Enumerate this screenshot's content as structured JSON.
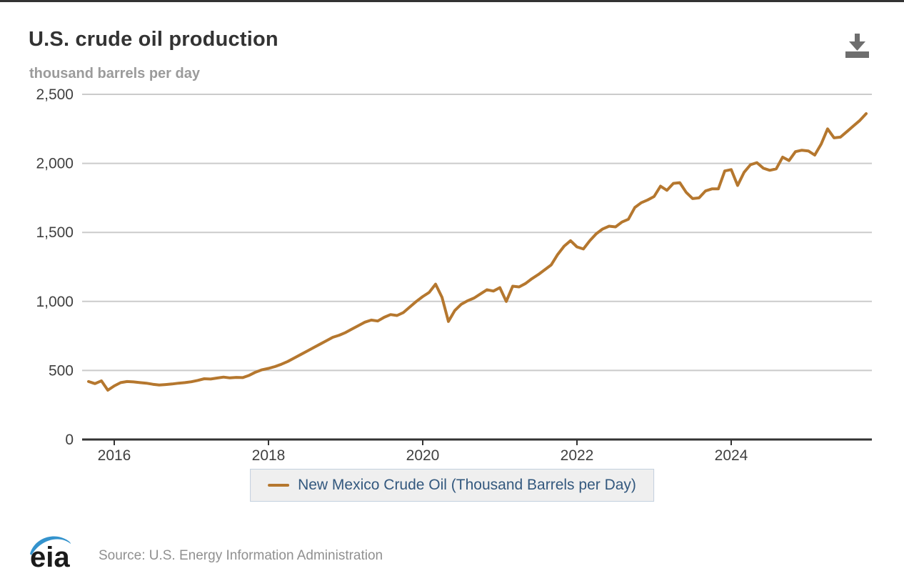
{
  "page": {
    "title": "U.S. crude oil production",
    "subtitle": "thousand barrels per day"
  },
  "footer": {
    "logo_text": "eia",
    "source": "Source: U.S. Energy Information Administration"
  },
  "legend": {
    "label": "New Mexico Crude Oil (Thousand Barrels per Day)"
  },
  "icons": {
    "download": "download-icon"
  },
  "colors": {
    "series_line": "#b5772e",
    "gridline": "#cbcbcb",
    "axis_line": "#333333",
    "tick_label": "#404040",
    "title_text": "#333333",
    "subtitle_text": "#9b9b9b",
    "legend_text": "#33587e",
    "legend_bg": "#efefef",
    "legend_border": "#c3d0de",
    "source_text": "#909090",
    "logo_blue": "#3493cd",
    "download_icon": "#6e6e6e"
  },
  "chart_data": {
    "type": "line",
    "title": "U.S. crude oil production",
    "ylabel": "thousand barrels per day",
    "xlabel": "",
    "grid": "horizontal-only",
    "legend_position": "bottom-center",
    "ylim": [
      0,
      2500
    ],
    "y_ticks": [
      0,
      500,
      1000,
      1500,
      2000,
      2500
    ],
    "y_tick_labels": [
      "0",
      "500",
      "1,000",
      "1,500",
      "2,000",
      "2,500"
    ],
    "x_ticks": [
      2016,
      2018,
      2020,
      2022,
      2024
    ],
    "x_tick_labels": [
      "2016",
      "2018",
      "2020",
      "2022",
      "2024"
    ],
    "x_range": [
      "2015-09",
      "2025-10"
    ],
    "frequency": "monthly",
    "series": [
      {
        "name": "New Mexico Crude Oil (Thousand Barrels per Day)",
        "color": "#b5772e",
        "start": "2015-09",
        "values": [
          420,
          405,
          425,
          357,
          388,
          412,
          420,
          417,
          412,
          408,
          400,
          395,
          398,
          402,
          408,
          412,
          418,
          428,
          440,
          438,
          445,
          452,
          446,
          450,
          448,
          465,
          488,
          505,
          515,
          528,
          545,
          565,
          590,
          615,
          640,
          665,
          690,
          715,
          740,
          755,
          775,
          800,
          825,
          850,
          865,
          858,
          885,
          905,
          898,
          920,
          960,
          1000,
          1035,
          1065,
          1125,
          1030,
          855,
          935,
          980,
          1005,
          1025,
          1055,
          1085,
          1075,
          1100,
          1000,
          1110,
          1105,
          1130,
          1165,
          1195,
          1230,
          1265,
          1340,
          1400,
          1440,
          1395,
          1380,
          1440,
          1490,
          1525,
          1545,
          1540,
          1575,
          1595,
          1680,
          1715,
          1735,
          1760,
          1835,
          1805,
          1855,
          1860,
          1790,
          1745,
          1750,
          1800,
          1815,
          1815,
          1945,
          1955,
          1840,
          1935,
          1990,
          2005,
          1965,
          1950,
          1960,
          2045,
          2020,
          2085,
          2095,
          2090,
          2060,
          2140,
          2250,
          2185,
          2190,
          2230,
          2270,
          2310,
          2360
        ]
      }
    ]
  }
}
